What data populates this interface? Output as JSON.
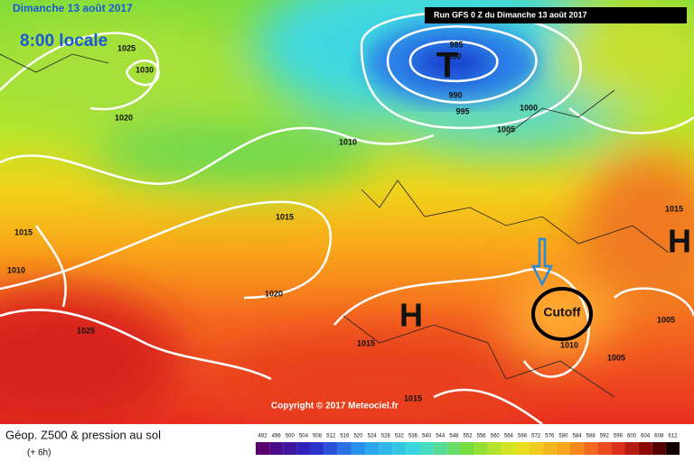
{
  "header": {
    "date": "Dimanche 13 août 2017",
    "time": "8:00 locale",
    "run": "Run GFS 0 Z du Dimanche 13 août 2017"
  },
  "copyright": "Copyright © 2017 Meteociel.fr",
  "systems": {
    "high_1": "H",
    "high_2": "H",
    "low": "T",
    "annotation": "Cutoff"
  },
  "isobar_labels": [
    "1025",
    "1030",
    "1020",
    "1010",
    "1015",
    "1015",
    "1010",
    "1020",
    "1025",
    "1015",
    "985",
    "990",
    "990",
    "995",
    "1000",
    "1005",
    "1015",
    "1005",
    "1010",
    "1005",
    "1015"
  ],
  "legend": {
    "title": "Géop. Z500 & pression au sol",
    "subtitle": "(+ 6h)",
    "scale": [
      "492",
      "496",
      "500",
      "504",
      "508",
      "512",
      "516",
      "520",
      "524",
      "528",
      "532",
      "536",
      "540",
      "544",
      "548",
      "552",
      "556",
      "560",
      "564",
      "568",
      "572",
      "576",
      "580",
      "584",
      "588",
      "592",
      "596",
      "600",
      "604",
      "608",
      "612"
    ]
  }
}
